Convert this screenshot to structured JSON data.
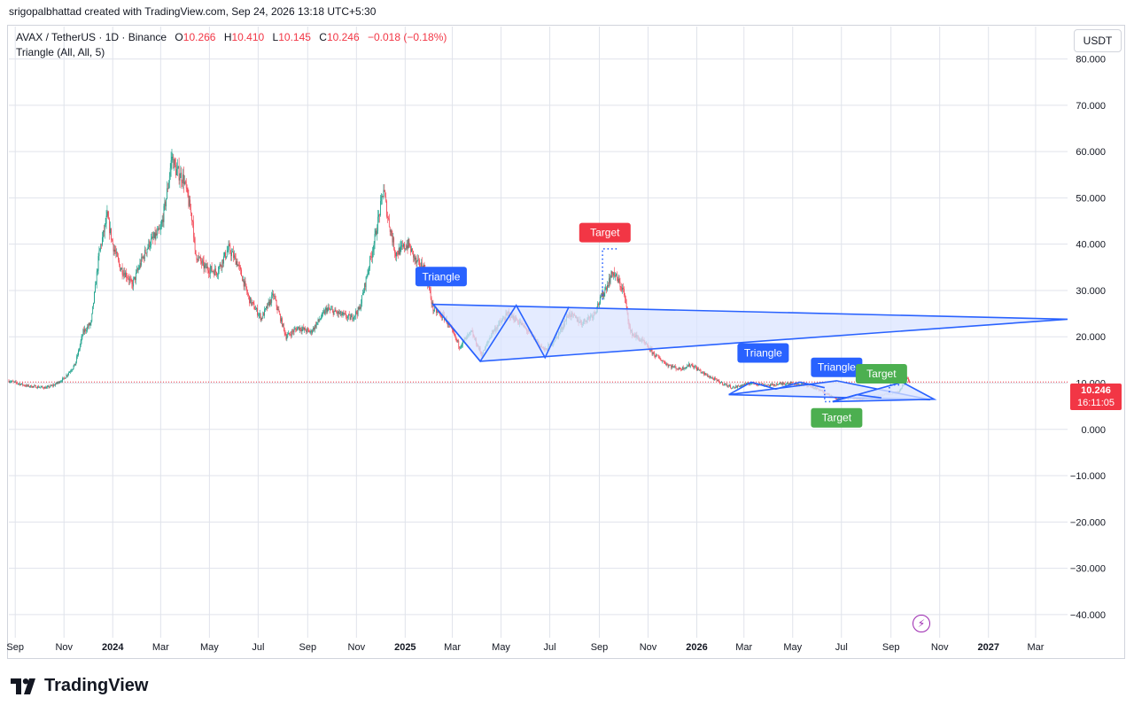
{
  "header": {
    "attribution": "srigopalbhattad created with TradingView.com, Sep 24, 2026 13:18 UTC+5:30"
  },
  "legend": {
    "symbol": "AVAX / TetherUS · 1D · Binance",
    "open_label": "O",
    "open": "10.266",
    "high_label": "H",
    "high": "10.410",
    "low_label": "L",
    "low": "10.145",
    "close_label": "C",
    "close": "10.246",
    "change": "−0.018 (−0.18%)",
    "indicator": "Triangle (All, All, 5)"
  },
  "quote_currency": "USDT",
  "price_tag": {
    "price": "10.246",
    "countdown": "16:11:05"
  },
  "footer": {
    "brand": "TradingView"
  },
  "colors": {
    "up": "#089981",
    "down": "#f23645",
    "pattern": "#2962ff",
    "pattern_fill": "#dbe4ff",
    "target_down": "#f23645",
    "target_up": "#4caf50",
    "grid": "#e0e3eb"
  },
  "icons": [
    "tradingview-logo-icon",
    "flash-icon"
  ],
  "chart_data": {
    "type": "candlestick",
    "symbol": "AVAX/USDT",
    "interval": "1D",
    "ylim": [
      -45,
      87
    ],
    "y_ticks": [
      -40,
      -30,
      -20,
      -10,
      0,
      10,
      20,
      30,
      40,
      50,
      60,
      70,
      80
    ],
    "y_tick_labels": [
      "−40.000",
      "−30.000",
      "−20.000",
      "−10.000",
      "0.000",
      "10.000",
      "20.000",
      "30.000",
      "40.000",
      "50.000",
      "60.000",
      "70.000",
      "80.000"
    ],
    "x_axis": {
      "start": "2023-08-24",
      "end": "2027-04-10",
      "ticks": [
        {
          "date": "2023-09-01",
          "label": "Sep"
        },
        {
          "date": "2023-11-01",
          "label": "Nov"
        },
        {
          "date": "2024-01-01",
          "label": "2024"
        },
        {
          "date": "2024-03-01",
          "label": "Mar"
        },
        {
          "date": "2024-05-01",
          "label": "May"
        },
        {
          "date": "2024-07-01",
          "label": "Jul"
        },
        {
          "date": "2024-09-01",
          "label": "Sep"
        },
        {
          "date": "2024-11-01",
          "label": "Nov"
        },
        {
          "date": "2025-01-01",
          "label": "2025"
        },
        {
          "date": "2025-03-01",
          "label": "Mar"
        },
        {
          "date": "2025-05-01",
          "label": "May"
        },
        {
          "date": "2025-07-01",
          "label": "Jul"
        },
        {
          "date": "2025-09-01",
          "label": "Sep"
        },
        {
          "date": "2025-11-01",
          "label": "Nov"
        },
        {
          "date": "2026-01-01",
          "label": "2026"
        },
        {
          "date": "2026-03-01",
          "label": "Mar"
        },
        {
          "date": "2026-05-01",
          "label": "May"
        },
        {
          "date": "2026-07-01",
          "label": "Jul"
        },
        {
          "date": "2026-09-01",
          "label": "Sep"
        },
        {
          "date": "2026-11-01",
          "label": "Nov"
        },
        {
          "date": "2027-01-01",
          "label": "2027"
        },
        {
          "date": "2027-03-01",
          "label": "Mar"
        }
      ]
    },
    "last_price": 10.246,
    "price_path": [
      [
        "2023-08-24",
        10.5
      ],
      [
        "2023-09-15",
        9.4
      ],
      [
        "2023-10-10",
        9.0
      ],
      [
        "2023-10-20",
        9.6
      ],
      [
        "2023-11-01",
        11.0
      ],
      [
        "2023-11-15",
        14.0
      ],
      [
        "2023-11-25",
        21.0
      ],
      [
        "2023-12-05",
        23.0
      ],
      [
        "2023-12-15",
        38.0
      ],
      [
        "2023-12-25",
        46.0
      ],
      [
        "2024-01-01",
        40.0
      ],
      [
        "2024-01-10",
        35.0
      ],
      [
        "2024-01-20",
        33.0
      ],
      [
        "2024-01-25",
        31.0
      ],
      [
        "2024-02-05",
        36.0
      ],
      [
        "2024-02-15",
        40.0
      ],
      [
        "2024-03-01",
        43.0
      ],
      [
        "2024-03-08",
        50.0
      ],
      [
        "2024-03-15",
        59.0
      ],
      [
        "2024-03-20",
        56.0
      ],
      [
        "2024-03-30",
        54.0
      ],
      [
        "2024-04-10",
        45.0
      ],
      [
        "2024-04-13",
        38.0
      ],
      [
        "2024-04-25",
        35.0
      ],
      [
        "2024-05-10",
        34.0
      ],
      [
        "2024-05-25",
        39.0
      ],
      [
        "2024-06-05",
        36.0
      ],
      [
        "2024-06-20",
        28.0
      ],
      [
        "2024-07-05",
        24.0
      ],
      [
        "2024-07-20",
        29.0
      ],
      [
        "2024-08-05",
        20.0
      ],
      [
        "2024-08-20",
        22.0
      ],
      [
        "2024-09-05",
        21.0
      ],
      [
        "2024-09-25",
        26.0
      ],
      [
        "2024-10-10",
        25.0
      ],
      [
        "2024-10-25",
        24.0
      ],
      [
        "2024-11-05",
        26.0
      ],
      [
        "2024-11-15",
        34.0
      ],
      [
        "2024-11-25",
        42.0
      ],
      [
        "2024-12-05",
        52.0
      ],
      [
        "2024-12-10",
        46.0
      ],
      [
        "2024-12-20",
        38.0
      ],
      [
        "2025-01-05",
        40.0
      ],
      [
        "2025-01-15",
        36.0
      ],
      [
        "2025-01-25",
        35.0
      ],
      [
        "2025-02-05",
        26.0
      ],
      [
        "2025-02-20",
        24.0
      ],
      [
        "2025-03-10",
        18.0
      ],
      [
        "2025-03-25",
        21.0
      ],
      [
        "2025-04-07",
        16.0
      ],
      [
        "2025-04-20",
        21.0
      ],
      [
        "2025-05-10",
        25.0
      ],
      [
        "2025-05-25",
        23.0
      ],
      [
        "2025-06-10",
        20.0
      ],
      [
        "2025-06-25",
        17.0
      ],
      [
        "2025-07-10",
        20.0
      ],
      [
        "2025-07-25",
        25.0
      ],
      [
        "2025-08-10",
        23.0
      ],
      [
        "2025-08-25",
        25.0
      ],
      [
        "2025-09-05",
        29.0
      ],
      [
        "2025-09-18",
        34.0
      ],
      [
        "2025-10-01",
        30.0
      ],
      [
        "2025-10-10",
        21.0
      ],
      [
        "2025-10-25",
        19.0
      ],
      [
        "2025-11-10",
        16.0
      ],
      [
        "2025-11-25",
        14.0
      ],
      [
        "2025-12-10",
        13.0
      ],
      [
        "2025-12-25",
        14.0
      ],
      [
        "2026-01-10",
        12.0
      ],
      [
        "2026-02-01",
        10.0
      ],
      [
        "2026-02-15",
        9.0
      ],
      [
        "2026-03-10",
        10.0
      ],
      [
        "2026-04-01",
        9.5
      ],
      [
        "2026-04-25",
        10.0
      ],
      [
        "2026-05-20",
        9.5
      ],
      [
        "2026-06-10",
        8.0
      ],
      [
        "2026-06-25",
        6.5
      ],
      [
        "2026-07-10",
        6.8
      ],
      [
        "2026-07-25",
        6.6
      ],
      [
        "2026-08-10",
        7.0
      ],
      [
        "2026-08-25",
        7.5
      ],
      [
        "2026-09-10",
        8.0
      ],
      [
        "2026-09-17",
        9.5
      ],
      [
        "2026-09-21",
        11.0
      ],
      [
        "2026-09-24",
        10.25
      ]
    ],
    "patterns": [
      {
        "type": "triangle",
        "label": "Triangle",
        "label_anchor": [
          "2025-02-15",
          33.0
        ],
        "outline": [
          [
            "2025-02-05",
            27.0
          ],
          [
            "2025-04-05",
            14.7
          ],
          [
            "2027-04-10",
            23.8
          ]
        ],
        "zigzag": [
          [
            "2025-02-05",
            27.0
          ],
          [
            "2025-04-05",
            14.7
          ],
          [
            "2025-05-20",
            26.8
          ],
          [
            "2025-06-25",
            15.5
          ],
          [
            "2025-07-25",
            26.5
          ]
        ]
      },
      {
        "type": "triangle",
        "label": "Triangle",
        "label_anchor": [
          "2026-03-25",
          16.5
        ],
        "outline": [
          [
            "2026-02-10",
            7.5
          ],
          [
            "2026-06-25",
            10.5
          ],
          [
            "2026-10-20",
            6.4
          ]
        ],
        "zigzag": [
          [
            "2026-02-10",
            7.5
          ],
          [
            "2026-03-10",
            10.2
          ],
          [
            "2026-04-10",
            8.7
          ],
          [
            "2026-05-10",
            10.2
          ],
          [
            "2026-06-10",
            9.0
          ]
        ]
      },
      {
        "type": "triangle",
        "label": "Triangle",
        "label_anchor": [
          "2026-06-25",
          13.4
        ],
        "outline": [
          [
            "2026-06-20",
            6.0
          ],
          [
            "2026-09-15",
            10.2
          ],
          [
            "2026-10-25",
            6.5
          ]
        ],
        "zigzag": [
          [
            "2026-06-20",
            6.0
          ],
          [
            "2026-07-20",
            7.5
          ],
          [
            "2026-08-20",
            6.8
          ]
        ]
      }
    ],
    "targets": [
      {
        "label": "Target",
        "direction": "up",
        "color": "red",
        "anchor": [
          "2025-09-08",
          42.5
        ],
        "line": [
          [
            "2025-09-05",
            28.0
          ],
          [
            "2025-09-05",
            39.0
          ],
          [
            "2025-09-25",
            39.0
          ]
        ]
      },
      {
        "label": "Target",
        "direction": "down",
        "color": "green",
        "anchor": [
          "2026-06-25",
          2.5
        ],
        "line": [
          [
            "2026-06-10",
            8.5
          ],
          [
            "2026-06-10",
            6.0
          ],
          [
            "2026-06-25",
            6.0
          ]
        ]
      },
      {
        "label": "Target",
        "direction": "up",
        "color": "green",
        "anchor": [
          "2026-08-20",
          12.0
        ],
        "line": [
          [
            "2026-08-30",
            8.0
          ],
          [
            "2026-08-30",
            9.6
          ],
          [
            "2026-09-15",
            9.6
          ]
        ]
      }
    ]
  }
}
